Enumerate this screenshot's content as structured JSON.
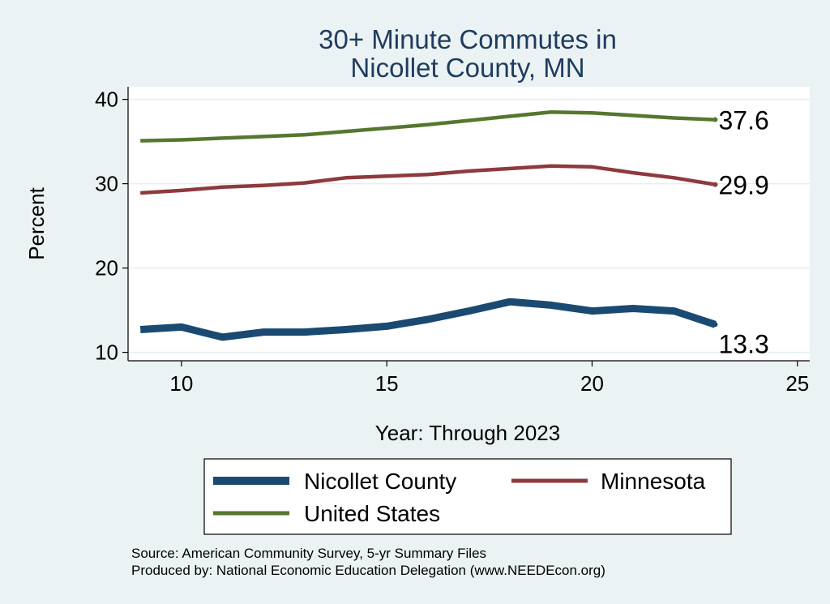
{
  "chart_data": {
    "type": "line",
    "title": [
      "30+ Minute Commutes in",
      "Nicollet County, MN"
    ],
    "xlabel": "Year: Through 2023",
    "ylabel": "Percent",
    "xlim": [
      8.7,
      25.3
    ],
    "ylim": [
      9,
      41.5
    ],
    "xticks": [
      10,
      15,
      20,
      25
    ],
    "yticks": [
      10,
      20,
      30,
      40
    ],
    "grid": true,
    "legend_position": "bottom",
    "x": [
      9,
      10,
      11,
      12,
      13,
      14,
      15,
      16,
      17,
      18,
      19,
      20,
      21,
      22,
      23
    ],
    "series": [
      {
        "name": "Nicollet County",
        "color": "#1a4a72",
        "values": [
          12.7,
          13.0,
          11.8,
          12.4,
          12.4,
          12.7,
          13.1,
          13.9,
          14.9,
          16.0,
          15.6,
          14.9,
          15.2,
          14.9,
          13.3
        ],
        "end_label": "13.3"
      },
      {
        "name": "Minnesota",
        "color": "#8e3a3d",
        "values": [
          28.9,
          29.2,
          29.6,
          29.8,
          30.1,
          30.7,
          30.9,
          31.1,
          31.5,
          31.8,
          32.1,
          32.0,
          31.3,
          30.7,
          29.9
        ],
        "end_label": "29.9"
      },
      {
        "name": "United States",
        "color": "#55772e",
        "values": [
          35.1,
          35.2,
          35.4,
          35.6,
          35.8,
          36.2,
          36.6,
          37.0,
          37.5,
          38.0,
          38.5,
          38.4,
          38.1,
          37.8,
          37.6
        ],
        "end_label": "37.6"
      }
    ],
    "notes": [
      "Source: American Community Survey, 5-yr Summary Files",
      "Produced by: National Economic Education Delegation (www.NEEDEcon.org)"
    ]
  }
}
